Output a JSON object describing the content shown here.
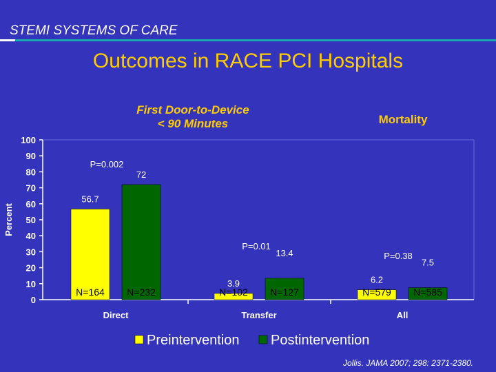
{
  "header": {
    "section_label": "STEMI SYSTEMS OF CARE"
  },
  "slide_title": "Outcomes in RACE PCI Hospitals",
  "subtitle_left": {
    "line1": "First Door-to-Device",
    "line2": "< 90 Minutes"
  },
  "subtitle_right": "Mortality",
  "citation": "Jollis. JAMA 2007; 298: 2371-2380.",
  "colors": {
    "pre": "#ffff00",
    "post": "#006600",
    "background": "#3333bb",
    "accent": "#ffcc00"
  },
  "chart_data": {
    "type": "bar",
    "ylabel": "Percent",
    "ylim": [
      0,
      100
    ],
    "yticks": [
      0,
      10,
      20,
      30,
      40,
      50,
      60,
      70,
      80,
      90,
      100
    ],
    "categories": [
      "Direct",
      "Transfer",
      "All"
    ],
    "series": [
      {
        "name": "Preintervention",
        "values": [
          56.7,
          3.9,
          6.2
        ],
        "n_labels": [
          "N=164",
          "N=102",
          "N=579"
        ]
      },
      {
        "name": "Postintervention",
        "values": [
          72,
          13.4,
          7.5
        ],
        "n_labels": [
          "N=232",
          "N=127",
          "N=585"
        ]
      }
    ],
    "p_values": [
      "P=0.002",
      "P=0.01",
      "P=0.38"
    ],
    "value_labels": [
      [
        "56.7",
        "72"
      ],
      [
        "3.9",
        "13.4"
      ],
      [
        "6.2",
        "7.5"
      ]
    ],
    "legend": [
      "Preintervention",
      "Postintervention"
    ]
  }
}
